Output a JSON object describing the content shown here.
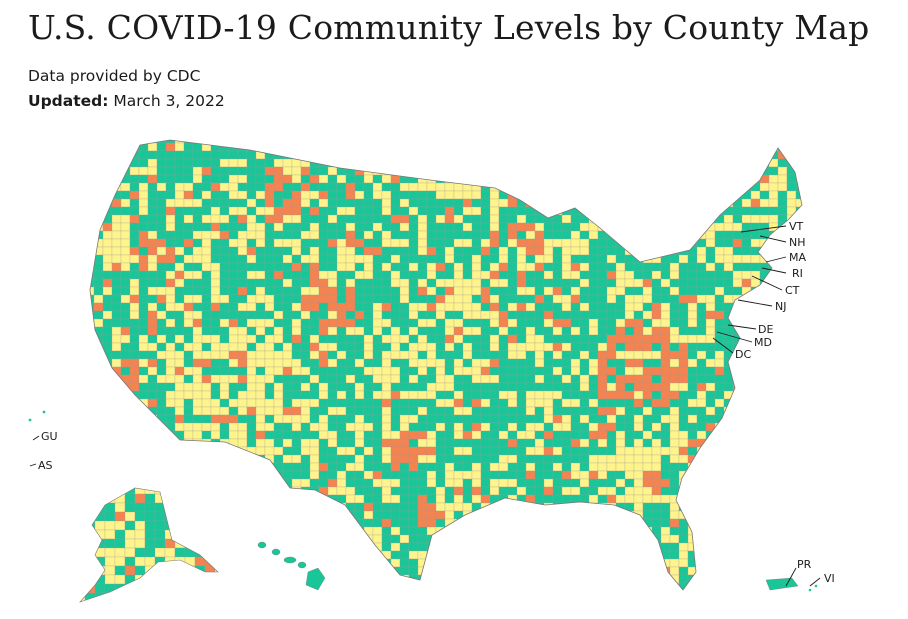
{
  "header": {
    "title": "U.S. COVID-19 Community Levels by County Map",
    "source": "Data provided by CDC",
    "updated_label": "Updated:",
    "updated_date": "March 3, 2022"
  },
  "colors": {
    "low": "#19c697",
    "medium": "#fff48c",
    "high": "#f4834f",
    "border": "#8a8a8a"
  },
  "callouts": {
    "vt": "VT",
    "nh": "NH",
    "ma": "MA",
    "ri": "RI",
    "ct": "CT",
    "nj": "NJ",
    "de": "DE",
    "md": "MD",
    "dc": "DC",
    "gu": "GU",
    "as": "AS",
    "pr": "PR",
    "vi": "VI"
  }
}
